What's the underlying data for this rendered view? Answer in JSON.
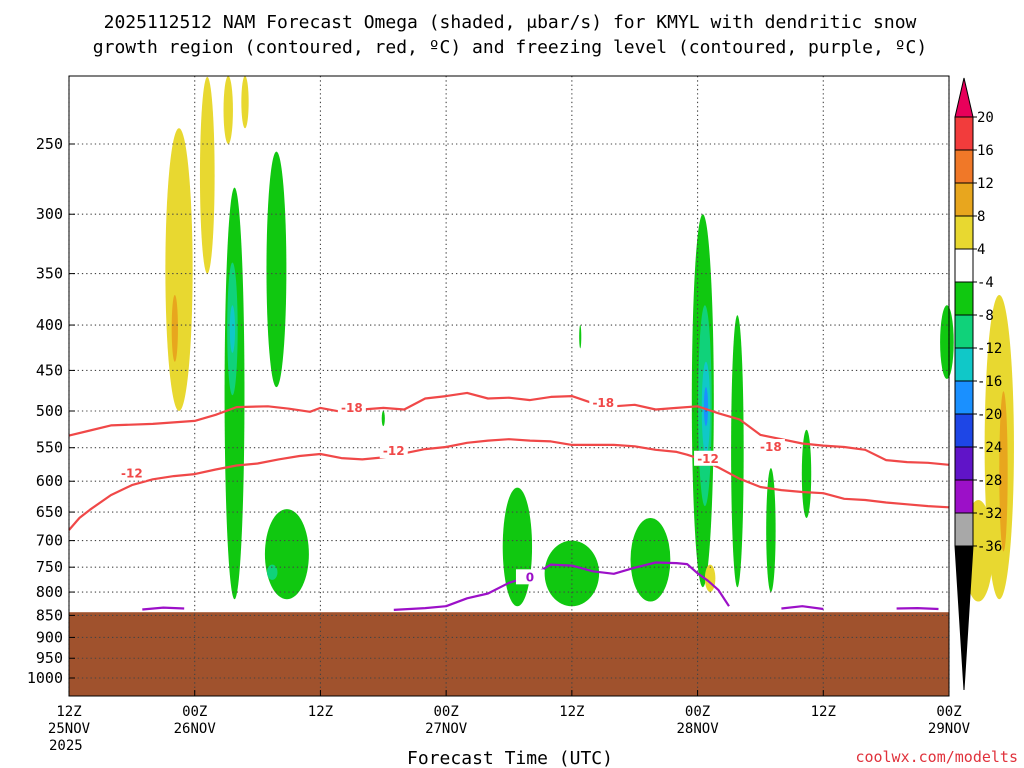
{
  "chart_data": {
    "type": "heatmap",
    "title_line1": "2025112512 NAM Forecast Omega (shaded, μbar/s) for KMYL with dendritic snow",
    "title_line2": "growth region (contoured, red, ºC) and freezing level (contoured, purple, ºC)",
    "xlabel": "Forecast Time (UTC)",
    "credit": "coolwx.com/modelts",
    "y_axis": {
      "scale": "log-pressure",
      "range": [
        200,
        1050
      ],
      "ticks": [
        250,
        300,
        350,
        400,
        450,
        500,
        550,
        600,
        650,
        700,
        750,
        800,
        850,
        900,
        950,
        1000
      ]
    },
    "x_axis": {
      "range_hours": [
        0,
        84
      ],
      "ticks": [
        {
          "h": 0,
          "l1": "12Z",
          "l2": "25NOV",
          "l3": "2025"
        },
        {
          "h": 12,
          "l1": "00Z",
          "l2": "26NOV",
          "l3": ""
        },
        {
          "h": 24,
          "l1": "12Z",
          "l2": "",
          "l3": ""
        },
        {
          "h": 36,
          "l1": "00Z",
          "l2": "27NOV",
          "l3": ""
        },
        {
          "h": 48,
          "l1": "12Z",
          "l2": "",
          "l3": ""
        },
        {
          "h": 60,
          "l1": "00Z",
          "l2": "28NOV",
          "l3": ""
        },
        {
          "h": 72,
          "l1": "12Z",
          "l2": "",
          "l3": ""
        },
        {
          "h": 84,
          "l1": "00Z",
          "l2": "29NOV",
          "l3": ""
        }
      ]
    },
    "terrain": {
      "surface_pressure_hpa": 843,
      "color": "#a0522d"
    },
    "colorbar": {
      "labels": [
        20,
        16,
        12,
        8,
        4,
        -4,
        -8,
        -12,
        -16,
        -20,
        -24,
        -28,
        -32,
        -36
      ],
      "bins": [
        {
          "color": "#e8005a"
        },
        {
          "color": "#f23c3c"
        },
        {
          "color": "#f07828"
        },
        {
          "color": "#e8a61e"
        },
        {
          "color": "#e8d830"
        },
        {
          "color": "#ffffff"
        },
        {
          "color": "#10c810"
        },
        {
          "color": "#10d27a"
        },
        {
          "color": "#10c8c8"
        },
        {
          "color": "#1a90ff"
        },
        {
          "color": "#1e46e6"
        },
        {
          "color": "#6014c8"
        },
        {
          "color": "#9c10c8"
        },
        {
          "color": "#a8a8a8"
        },
        {
          "color": "#000000"
        }
      ]
    },
    "contours": [
      {
        "name": "-18",
        "color": "#f04848",
        "points": [
          [
            0,
            533
          ],
          [
            2,
            526
          ],
          [
            4,
            519
          ],
          [
            8,
            517
          ],
          [
            10,
            515
          ],
          [
            12,
            513
          ],
          [
            14,
            505
          ],
          [
            16,
            495
          ],
          [
            19,
            494
          ],
          [
            21,
            497
          ],
          [
            23,
            501
          ],
          [
            24,
            496
          ],
          [
            26,
            501
          ],
          [
            28,
            498
          ],
          [
            30,
            496
          ],
          [
            32,
            498
          ],
          [
            34,
            484
          ],
          [
            36,
            481
          ],
          [
            38,
            477
          ],
          [
            40,
            484
          ],
          [
            42,
            483
          ],
          [
            44,
            486
          ],
          [
            46,
            482
          ],
          [
            48,
            481
          ],
          [
            50,
            490
          ],
          [
            52,
            494
          ],
          [
            54,
            492
          ],
          [
            56,
            498
          ],
          [
            58,
            496
          ],
          [
            60,
            494
          ],
          [
            62,
            503
          ],
          [
            64,
            511
          ],
          [
            66,
            532
          ],
          [
            68,
            538
          ],
          [
            70,
            544
          ],
          [
            72,
            547
          ],
          [
            74,
            549
          ],
          [
            76,
            553
          ],
          [
            78,
            568
          ],
          [
            80,
            571
          ],
          [
            82,
            572
          ],
          [
            84,
            575
          ]
        ],
        "labels": [
          {
            "h": 27,
            "p": 496,
            "text": "-18"
          },
          {
            "h": 51,
            "p": 490,
            "text": "-18"
          },
          {
            "h": 67,
            "p": 549,
            "text": "-18"
          }
        ]
      },
      {
        "name": "-12",
        "color": "#f04848",
        "points": [
          [
            0,
            681
          ],
          [
            1,
            660
          ],
          [
            2,
            646
          ],
          [
            4,
            622
          ],
          [
            6,
            606
          ],
          [
            8,
            597
          ],
          [
            10,
            592
          ],
          [
            12,
            589
          ],
          [
            14,
            582
          ],
          [
            16,
            576
          ],
          [
            18,
            573
          ],
          [
            20,
            567
          ],
          [
            22,
            562
          ],
          [
            24,
            559
          ],
          [
            26,
            565
          ],
          [
            28,
            567
          ],
          [
            30,
            564
          ],
          [
            32,
            558
          ],
          [
            34,
            552
          ],
          [
            36,
            549
          ],
          [
            38,
            543
          ],
          [
            40,
            540
          ],
          [
            42,
            538
          ],
          [
            44,
            540
          ],
          [
            46,
            541
          ],
          [
            48,
            546
          ],
          [
            50,
            546
          ],
          [
            52,
            546
          ],
          [
            54,
            548
          ],
          [
            56,
            553
          ],
          [
            58,
            556
          ],
          [
            59,
            560
          ],
          [
            60,
            565
          ],
          [
            62,
            579
          ],
          [
            64,
            596
          ],
          [
            66,
            609
          ],
          [
            68,
            614
          ],
          [
            70,
            617
          ],
          [
            72,
            619
          ],
          [
            74,
            628
          ],
          [
            76,
            630
          ],
          [
            78,
            634
          ],
          [
            80,
            637
          ],
          [
            82,
            640
          ],
          [
            84,
            642
          ]
        ],
        "labels": [
          {
            "h": 6,
            "p": 588,
            "text": "-12"
          },
          {
            "h": 31,
            "p": 555,
            "text": "-12"
          },
          {
            "h": 61,
            "p": 566,
            "text": "-12"
          }
        ]
      },
      {
        "name": "0",
        "color": "#9c10c8",
        "points": [
          [
            7,
            837
          ],
          [
            9,
            833
          ],
          [
            11,
            835
          ]
        ],
        "labels": []
      },
      {
        "name": "0",
        "color": "#9c10c8",
        "points": [
          [
            31,
            838
          ],
          [
            34,
            834
          ],
          [
            36,
            830
          ],
          [
            38,
            813
          ],
          [
            40,
            803
          ],
          [
            42,
            781
          ],
          [
            44,
            768
          ],
          [
            45,
            757
          ],
          [
            46,
            745
          ],
          [
            48,
            747
          ],
          [
            50,
            758
          ],
          [
            52,
            763
          ],
          [
            54,
            751
          ],
          [
            56,
            741
          ],
          [
            58,
            742
          ],
          [
            59,
            744
          ],
          [
            60,
            762
          ],
          [
            61,
            777
          ],
          [
            62,
            796
          ],
          [
            63,
            830
          ]
        ],
        "labels": [
          {
            "h": 44,
            "p": 770,
            "text": "0"
          }
        ]
      },
      {
        "name": "0",
        "color": "#9c10c8",
        "points": [
          [
            68,
            835
          ],
          [
            70,
            830
          ],
          [
            72,
            836
          ]
        ],
        "labels": []
      },
      {
        "name": "0",
        "color": "#9c10c8",
        "points": [
          [
            79,
            835
          ],
          [
            81,
            834
          ],
          [
            83,
            836
          ]
        ],
        "labels": []
      }
    ],
    "omega_regions": [
      {
        "bin": 4,
        "h": 10.5,
        "p1": 240,
        "p2": 500,
        "w": 2.6
      },
      {
        "bin": 4,
        "h": 13.2,
        "p1": 210,
        "p2": 350,
        "w": 1.4
      },
      {
        "bin": 4,
        "h": 15.2,
        "p1": 205,
        "p2": 250,
        "w": 0.9
      },
      {
        "bin": 4,
        "h": 16.8,
        "p1": 200,
        "p2": 240,
        "w": 0.7
      },
      {
        "bin": 3,
        "h": 10.1,
        "p1": 370,
        "p2": 440,
        "w": 0.6
      },
      {
        "bin": 6,
        "h": 15.8,
        "p1": 280,
        "p2": 815,
        "w": 1.9
      },
      {
        "bin": 7,
        "h": 15.6,
        "p1": 340,
        "p2": 480,
        "w": 1.0
      },
      {
        "bin": 8,
        "h": 15.6,
        "p1": 380,
        "p2": 430,
        "w": 0.5
      },
      {
        "bin": 6,
        "h": 19.8,
        "p1": 255,
        "p2": 470,
        "w": 1.9
      },
      {
        "bin": 6,
        "h": 20.8,
        "p1": 645,
        "p2": 815,
        "w": 4.2
      },
      {
        "bin": 7,
        "h": 19.4,
        "p1": 745,
        "p2": 775,
        "w": 1.0
      },
      {
        "bin": 6,
        "h": 42.8,
        "p1": 610,
        "p2": 830,
        "w": 2.8
      },
      {
        "bin": 6,
        "h": 48.0,
        "p1": 700,
        "p2": 830,
        "w": 5.2
      },
      {
        "bin": 6,
        "h": 55.5,
        "p1": 660,
        "p2": 820,
        "w": 3.8
      },
      {
        "bin": 6,
        "h": 60.5,
        "p1": 300,
        "p2": 790,
        "w": 2.1
      },
      {
        "bin": 7,
        "h": 60.7,
        "p1": 380,
        "p2": 640,
        "w": 1.3
      },
      {
        "bin": 8,
        "h": 60.8,
        "p1": 440,
        "p2": 560,
        "w": 0.8
      },
      {
        "bin": 9,
        "h": 60.8,
        "p1": 470,
        "p2": 520,
        "w": 0.4
      },
      {
        "bin": 6,
        "h": 63.8,
        "p1": 390,
        "p2": 790,
        "w": 1.2
      },
      {
        "bin": 6,
        "h": 67.0,
        "p1": 580,
        "p2": 800,
        "w": 0.9
      },
      {
        "bin": 6,
        "h": 70.4,
        "p1": 525,
        "p2": 660,
        "w": 0.9
      },
      {
        "bin": 6,
        "h": 83.8,
        "p1": 380,
        "p2": 460,
        "w": 1.3
      },
      {
        "bin": 6,
        "h": 30.0,
        "p1": 500,
        "p2": 520,
        "w": 0.3
      },
      {
        "bin": 6,
        "h": 48.8,
        "p1": 400,
        "p2": 425,
        "w": 0.2
      },
      {
        "bin": 4,
        "h": 61.2,
        "p1": 745,
        "p2": 800,
        "w": 1.0
      },
      {
        "bin": 4,
        "h": 88.8,
        "p1": 370,
        "p2": 815,
        "w": 2.8
      },
      {
        "bin": 4,
        "h": 86.8,
        "p1": 630,
        "p2": 820,
        "w": 2.8
      },
      {
        "bin": 3,
        "h": 89.2,
        "p1": 475,
        "p2": 720,
        "w": 0.8
      }
    ]
  }
}
